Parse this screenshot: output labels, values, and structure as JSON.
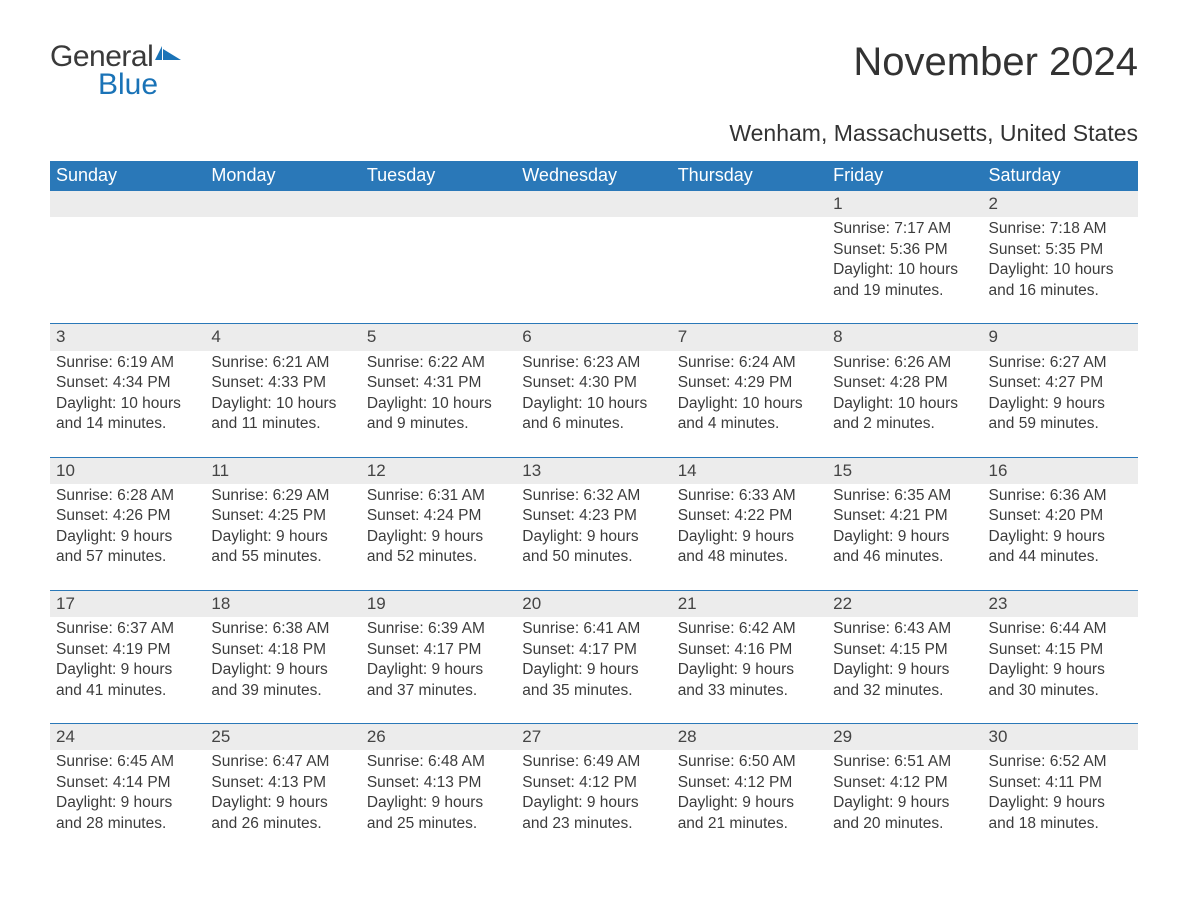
{
  "brand": {
    "text_general": "General",
    "text_blue": "Blue",
    "icon_color": "#1a73b7"
  },
  "title": "November 2024",
  "location": "Wenham, Massachusetts, United States",
  "colors": {
    "header_bg": "#2a78b8",
    "header_text": "#ffffff",
    "daynum_bg": "#ececec",
    "row_border": "#2a78b8",
    "body_text": "#3a3a3a",
    "brand_blue": "#1a73b7"
  },
  "weekdays": [
    "Sunday",
    "Monday",
    "Tuesday",
    "Wednesday",
    "Thursday",
    "Friday",
    "Saturday"
  ],
  "weeks": [
    [
      null,
      null,
      null,
      null,
      null,
      {
        "n": "1",
        "sunrise": "7:17 AM",
        "sunset": "5:36 PM",
        "daylight": "10 hours and 19 minutes."
      },
      {
        "n": "2",
        "sunrise": "7:18 AM",
        "sunset": "5:35 PM",
        "daylight": "10 hours and 16 minutes."
      }
    ],
    [
      {
        "n": "3",
        "sunrise": "6:19 AM",
        "sunset": "4:34 PM",
        "daylight": "10 hours and 14 minutes."
      },
      {
        "n": "4",
        "sunrise": "6:21 AM",
        "sunset": "4:33 PM",
        "daylight": "10 hours and 11 minutes."
      },
      {
        "n": "5",
        "sunrise": "6:22 AM",
        "sunset": "4:31 PM",
        "daylight": "10 hours and 9 minutes."
      },
      {
        "n": "6",
        "sunrise": "6:23 AM",
        "sunset": "4:30 PM",
        "daylight": "10 hours and 6 minutes."
      },
      {
        "n": "7",
        "sunrise": "6:24 AM",
        "sunset": "4:29 PM",
        "daylight": "10 hours and 4 minutes."
      },
      {
        "n": "8",
        "sunrise": "6:26 AM",
        "sunset": "4:28 PM",
        "daylight": "10 hours and 2 minutes."
      },
      {
        "n": "9",
        "sunrise": "6:27 AM",
        "sunset": "4:27 PM",
        "daylight": "9 hours and 59 minutes."
      }
    ],
    [
      {
        "n": "10",
        "sunrise": "6:28 AM",
        "sunset": "4:26 PM",
        "daylight": "9 hours and 57 minutes."
      },
      {
        "n": "11",
        "sunrise": "6:29 AM",
        "sunset": "4:25 PM",
        "daylight": "9 hours and 55 minutes."
      },
      {
        "n": "12",
        "sunrise": "6:31 AM",
        "sunset": "4:24 PM",
        "daylight": "9 hours and 52 minutes."
      },
      {
        "n": "13",
        "sunrise": "6:32 AM",
        "sunset": "4:23 PM",
        "daylight": "9 hours and 50 minutes."
      },
      {
        "n": "14",
        "sunrise": "6:33 AM",
        "sunset": "4:22 PM",
        "daylight": "9 hours and 48 minutes."
      },
      {
        "n": "15",
        "sunrise": "6:35 AM",
        "sunset": "4:21 PM",
        "daylight": "9 hours and 46 minutes."
      },
      {
        "n": "16",
        "sunrise": "6:36 AM",
        "sunset": "4:20 PM",
        "daylight": "9 hours and 44 minutes."
      }
    ],
    [
      {
        "n": "17",
        "sunrise": "6:37 AM",
        "sunset": "4:19 PM",
        "daylight": "9 hours and 41 minutes."
      },
      {
        "n": "18",
        "sunrise": "6:38 AM",
        "sunset": "4:18 PM",
        "daylight": "9 hours and 39 minutes."
      },
      {
        "n": "19",
        "sunrise": "6:39 AM",
        "sunset": "4:17 PM",
        "daylight": "9 hours and 37 minutes."
      },
      {
        "n": "20",
        "sunrise": "6:41 AM",
        "sunset": "4:17 PM",
        "daylight": "9 hours and 35 minutes."
      },
      {
        "n": "21",
        "sunrise": "6:42 AM",
        "sunset": "4:16 PM",
        "daylight": "9 hours and 33 minutes."
      },
      {
        "n": "22",
        "sunrise": "6:43 AM",
        "sunset": "4:15 PM",
        "daylight": "9 hours and 32 minutes."
      },
      {
        "n": "23",
        "sunrise": "6:44 AM",
        "sunset": "4:15 PM",
        "daylight": "9 hours and 30 minutes."
      }
    ],
    [
      {
        "n": "24",
        "sunrise": "6:45 AM",
        "sunset": "4:14 PM",
        "daylight": "9 hours and 28 minutes."
      },
      {
        "n": "25",
        "sunrise": "6:47 AM",
        "sunset": "4:13 PM",
        "daylight": "9 hours and 26 minutes."
      },
      {
        "n": "26",
        "sunrise": "6:48 AM",
        "sunset": "4:13 PM",
        "daylight": "9 hours and 25 minutes."
      },
      {
        "n": "27",
        "sunrise": "6:49 AM",
        "sunset": "4:12 PM",
        "daylight": "9 hours and 23 minutes."
      },
      {
        "n": "28",
        "sunrise": "6:50 AM",
        "sunset": "4:12 PM",
        "daylight": "9 hours and 21 minutes."
      },
      {
        "n": "29",
        "sunrise": "6:51 AM",
        "sunset": "4:12 PM",
        "daylight": "9 hours and 20 minutes."
      },
      {
        "n": "30",
        "sunrise": "6:52 AM",
        "sunset": "4:11 PM",
        "daylight": "9 hours and 18 minutes."
      }
    ]
  ],
  "labels": {
    "sunrise": "Sunrise: ",
    "sunset": "Sunset: ",
    "daylight": "Daylight: "
  }
}
